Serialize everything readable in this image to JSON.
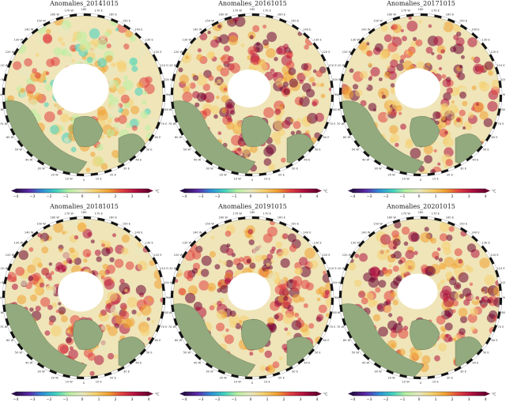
{
  "figure": {
    "panels": [
      {
        "title": "Anomalies_20141015"
      },
      {
        "title": "Anomalies_20161015"
      },
      {
        "title": "Anomalies_20171015"
      },
      {
        "title": "Anomalies_20181015"
      },
      {
        "title": "Anomalies_20191015"
      },
      {
        "title": "Anomalies_20201015"
      }
    ],
    "colorbar": {
      "ticks": [
        "−4",
        "−3",
        "−2",
        "−1",
        "0",
        "1",
        "2",
        "3",
        "4"
      ],
      "unit": "°C",
      "colors": [
        "#2b0f4a",
        "#5b2aa8",
        "#2f8fd6",
        "#3fd0c0",
        "#b8f0a0",
        "#e8e8c0",
        "#f5d070",
        "#f0a030",
        "#e04040",
        "#b01040",
        "#6a0030"
      ]
    },
    "longitude_labels": [
      "0",
      "10 E",
      "20 E",
      "30 E",
      "40 E",
      "50 E",
      "60 E",
      "70 E",
      "80 E",
      "90 E",
      "100 E",
      "110 E",
      "120 E",
      "130 E",
      "140 E",
      "150 E",
      "160 E",
      "170 E",
      "180",
      "170 W",
      "160 W",
      "150 W",
      "140 W",
      "130 W",
      "120 W",
      "110 W",
      "100 W",
      "90 W",
      "80 W",
      "70 W",
      "60 W",
      "50 W",
      "40 W",
      "30 W",
      "20 W",
      "10 W"
    ],
    "colors": {
      "land": "#93aa7e",
      "sea_ice": "#ffffff",
      "border": "#111111"
    }
  }
}
